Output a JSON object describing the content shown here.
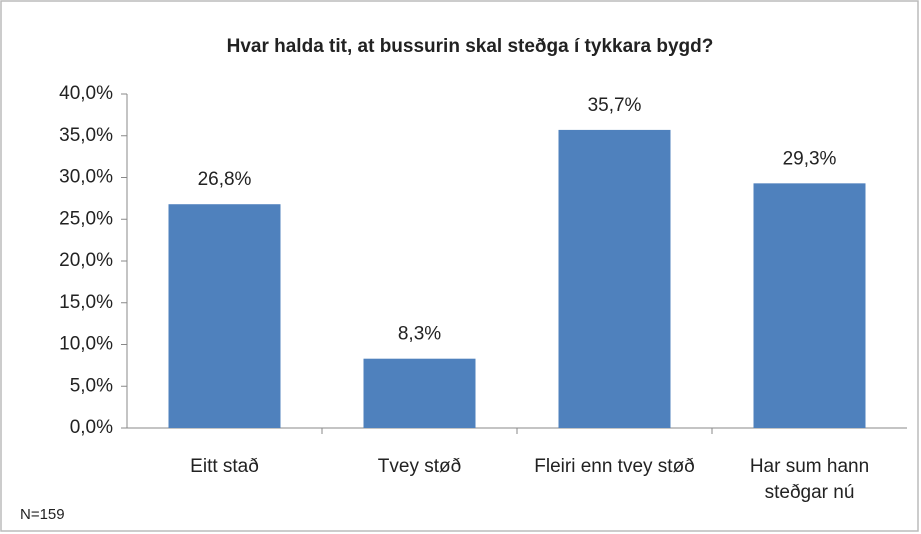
{
  "chart_data": {
    "type": "bar",
    "title": "Hvar halda tit, at bussurin skal steðga í tykkara bygd?",
    "categories": [
      "Eitt stað",
      "Tvey støð",
      "Fleiri enn tvey støð",
      "Har sum hann steðgar nú"
    ],
    "values": [
      26.8,
      8.3,
      35.7,
      29.3
    ],
    "value_labels": [
      "26,8%",
      "8,3%",
      "35,7%",
      "29,3%"
    ],
    "color": "#4f81bd",
    "ylim": [
      0,
      40
    ],
    "yticks": [
      {
        "value": 0,
        "label": "0,0%"
      },
      {
        "value": 5,
        "label": "5,0%"
      },
      {
        "value": 10,
        "label": "10,0%"
      },
      {
        "value": 15,
        "label": "15,0%"
      },
      {
        "value": 20,
        "label": "20,0%"
      },
      {
        "value": 25,
        "label": "25,0%"
      },
      {
        "value": 30,
        "label": "30,0%"
      },
      {
        "value": 35,
        "label": "35,0%"
      },
      {
        "value": 40,
        "label": "40,0%"
      }
    ],
    "grid": false,
    "annotation": "N=159"
  }
}
